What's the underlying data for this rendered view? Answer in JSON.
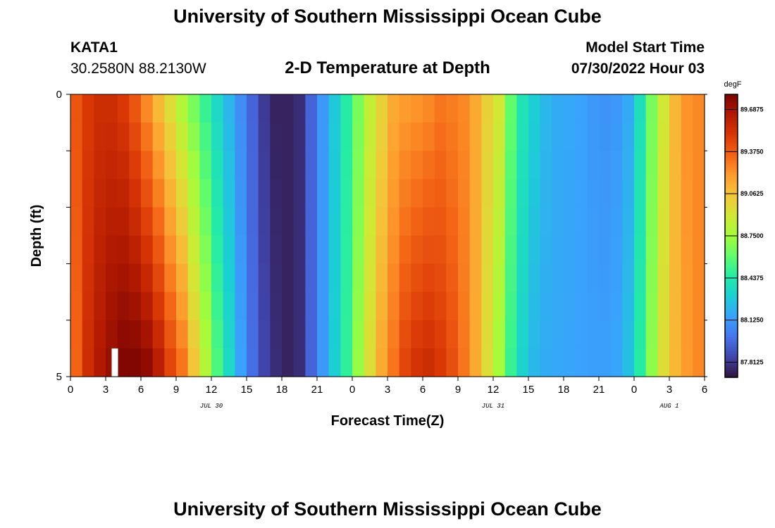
{
  "header": {
    "title": "University of Southern Mississippi Ocean Cube",
    "station_id": "KATA1",
    "coordinates": "30.2580N  88.2130W",
    "subtitle": "2-D Temperature at Depth",
    "model_start_label": "Model Start Time",
    "model_start_value": "07/30/2022 Hour 03"
  },
  "footer": {
    "title": "University of Southern Mississippi Ocean Cube"
  },
  "chart_data": {
    "type": "heatmap",
    "title": "2-D Temperature at Depth",
    "xlabel": "Forecast Time(Z)",
    "ylabel": "Depth (ft)",
    "x_range_hours": [
      0,
      54
    ],
    "y_range_ft": [
      0,
      5
    ],
    "y_tick_labels": [
      "0",
      "5"
    ],
    "x_tick_labels": [
      "0",
      "3",
      "6",
      "9",
      "12",
      "15",
      "18",
      "21",
      "0",
      "3",
      "6",
      "9",
      "12",
      "15",
      "18",
      "21",
      "0",
      "3",
      "6"
    ],
    "date_labels": [
      {
        "label": "JUL 30",
        "hour": 12
      },
      {
        "label": "JUL 31",
        "hour": 36
      },
      {
        "label": "AUG 1",
        "hour": 51
      }
    ],
    "colorbar": {
      "unit": "degF",
      "min": 87.7,
      "max": 89.8,
      "tick_labels": [
        "89.6875",
        "89.3750",
        "89.0625",
        "88.7500",
        "88.4375",
        "88.1250",
        "87.8125"
      ],
      "tick_values": [
        89.6875,
        89.375,
        89.0625,
        88.75,
        88.4375,
        88.125,
        87.8125
      ],
      "colors": [
        "#30123b",
        "#4145ab",
        "#4675ed",
        "#39a2fc",
        "#1bcfd4",
        "#24eca6",
        "#61fc6c",
        "#a4fc3b",
        "#d1e834",
        "#f3c63a",
        "#fe9b2d",
        "#f36315",
        "#d93806",
        "#b11901",
        "#7a0402"
      ]
    },
    "depth_layers_ft": [
      0.25,
      0.75,
      1.25,
      1.75,
      2.25,
      2.75,
      3.25,
      3.75,
      4.25,
      4.75
    ],
    "time_step_hours": 1,
    "time_hours": [
      0,
      1,
      2,
      3,
      4,
      5,
      6,
      7,
      8,
      9,
      10,
      11,
      12,
      13,
      14,
      15,
      16,
      17,
      18,
      19,
      20,
      21,
      22,
      23,
      24,
      25,
      26,
      27,
      28,
      29,
      30,
      31,
      32,
      33,
      34,
      35,
      36,
      37,
      38,
      39,
      40,
      41,
      42,
      43,
      44,
      45,
      46,
      47,
      48,
      49,
      50,
      51,
      52,
      53,
      54
    ],
    "surface_temp_degF": [
      89.4,
      89.5,
      89.55,
      89.55,
      89.5,
      89.4,
      89.25,
      89.1,
      88.95,
      88.8,
      88.65,
      88.5,
      88.35,
      88.22,
      88.08,
      87.95,
      87.82,
      87.75,
      87.75,
      87.78,
      87.95,
      88.12,
      88.28,
      88.45,
      88.65,
      88.85,
      89.0,
      89.15,
      89.2,
      89.22,
      89.25,
      89.3,
      89.28,
      89.25,
      89.15,
      89.0,
      88.9,
      88.6,
      88.4,
      88.3,
      88.22,
      88.18,
      88.17,
      88.15,
      88.12,
      88.1,
      88.12,
      88.18,
      88.38,
      88.65,
      88.9,
      89.1,
      89.22,
      89.25,
      89.2
    ],
    "bottom_temp_degF": [
      89.35,
      89.55,
      89.65,
      89.72,
      89.78,
      89.78,
      89.74,
      89.62,
      89.45,
      89.3,
      89.05,
      88.8,
      88.55,
      88.35,
      88.15,
      87.98,
      87.85,
      87.78,
      87.75,
      87.78,
      87.95,
      88.12,
      88.3,
      88.48,
      88.72,
      88.95,
      89.15,
      89.3,
      89.45,
      89.52,
      89.55,
      89.5,
      89.42,
      89.3,
      89.15,
      88.95,
      88.75,
      88.5,
      88.32,
      88.22,
      88.18,
      88.17,
      88.16,
      88.15,
      88.14,
      88.14,
      88.16,
      88.25,
      88.45,
      88.7,
      88.95,
      89.1,
      89.2,
      89.25,
      89.22
    ],
    "marker": {
      "type": "white-bar",
      "hour": 3.75,
      "depth_ft": [
        4.5,
        5
      ]
    }
  }
}
